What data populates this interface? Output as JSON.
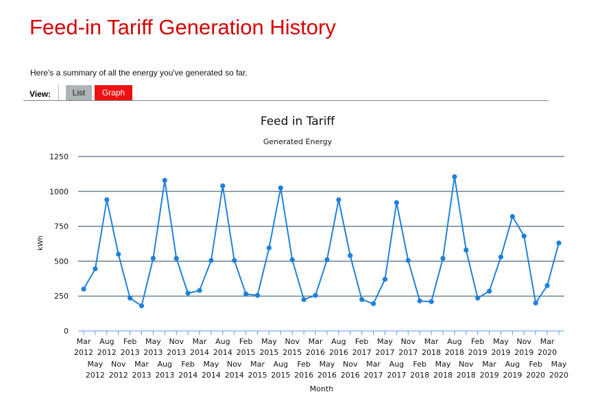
{
  "page": {
    "title": "Feed-in Tariff Generation History",
    "summary": "Here's a summary of all the energy you've generated so far."
  },
  "view": {
    "label": "View:",
    "tabs": [
      {
        "label": "List",
        "active": false
      },
      {
        "label": "Graph",
        "active": true
      }
    ]
  },
  "colors": {
    "title": "#d40000",
    "active_tab": "#ee1111",
    "inactive_tab": "#aeb5b8",
    "series": "#1f80d8",
    "gridline": "#2c4a5a"
  },
  "chart_data": {
    "type": "line",
    "title": "Feed in Tariff",
    "subtitle": "Generated Energy",
    "xlabel": "Month",
    "ylabel": "kWh",
    "ylim": [
      0,
      1250
    ],
    "yticks": [
      0,
      250,
      500,
      750,
      1000,
      1250
    ],
    "grid": true,
    "legend": "none",
    "categories": [
      "Mar 2012",
      "May 2012",
      "Aug 2012",
      "Nov 2012",
      "Feb 2013",
      "Mar 2013",
      "May 2013",
      "Aug 2013",
      "Nov 2013",
      "Feb 2014",
      "Mar 2014",
      "May 2014",
      "Aug 2014",
      "Nov 2014",
      "Feb 2015",
      "Mar 2015",
      "May 2015",
      "Aug 2015",
      "Nov 2015",
      "Feb 2016",
      "Mar 2016",
      "May 2016",
      "Aug 2016",
      "Nov 2016",
      "Feb 2017",
      "Mar 2017",
      "May 2017",
      "Aug 2017",
      "Nov 2017",
      "Feb 2018",
      "Mar 2018",
      "May 2018",
      "Aug 2018",
      "Nov 2018",
      "Feb 2019",
      "Mar 2019",
      "May 2019",
      "Aug 2019",
      "Nov 2019",
      "Feb 2020",
      "Mar 2020",
      "May 2020"
    ],
    "series": [
      {
        "values": [
          300,
          445,
          940,
          550,
          235,
          180,
          520,
          1080,
          520,
          270,
          290,
          505,
          1040,
          505,
          265,
          255,
          595,
          1025,
          510,
          225,
          255,
          510,
          940,
          540,
          225,
          195,
          370,
          920,
          505,
          215,
          210,
          520,
          1105,
          580,
          235,
          285,
          530,
          820,
          680,
          200,
          325,
          630
        ]
      }
    ]
  }
}
